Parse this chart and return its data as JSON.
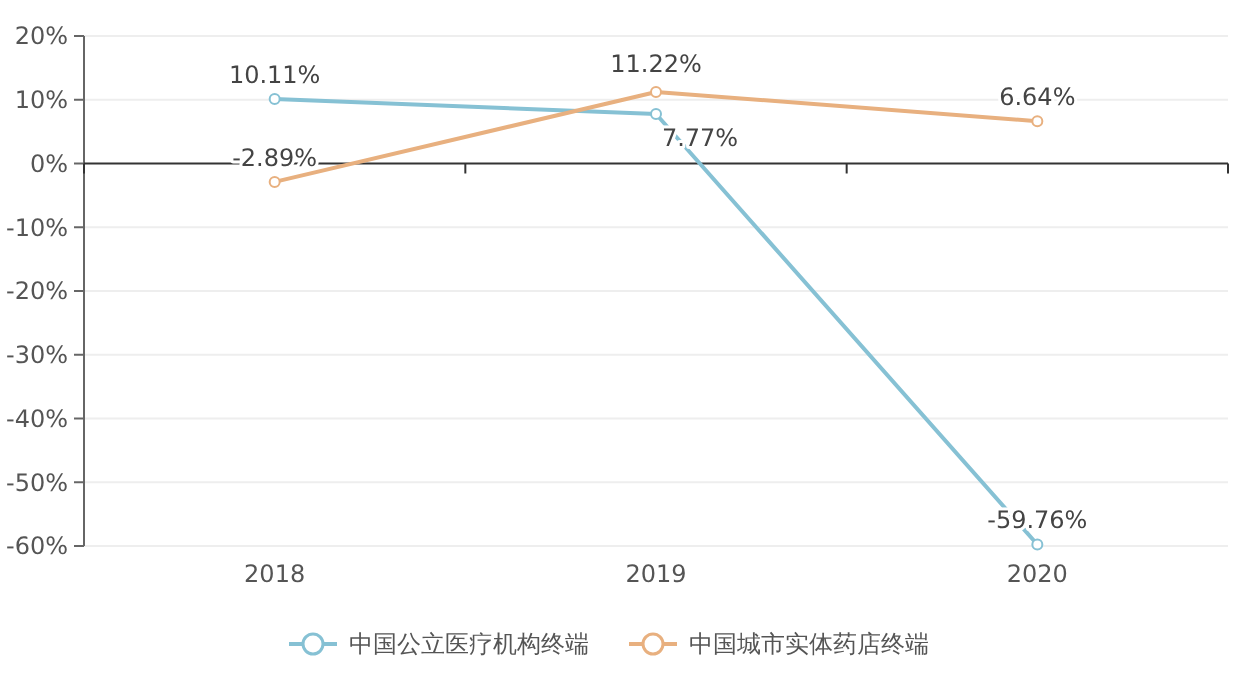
{
  "chart_data": {
    "type": "line",
    "categories": [
      "2018",
      "2019",
      "2020"
    ],
    "series": [
      {
        "name": "中国公立医疗机构终端",
        "color": "#86c1d4",
        "values": [
          10.11,
          7.77,
          -59.76
        ],
        "value_labels": [
          "10.11%",
          "7.77%",
          "-59.76%"
        ]
      },
      {
        "name": "中国城市实体药店终端",
        "color": "#e8b07f",
        "values": [
          -2.89,
          11.22,
          6.64
        ],
        "value_labels": [
          "-2.89%",
          "11.22%",
          "6.64%"
        ]
      }
    ],
    "ylim": [
      -60,
      20
    ],
    "yticks": [
      {
        "value": -60,
        "label": "-60%"
      },
      {
        "value": -50,
        "label": "-50%"
      },
      {
        "value": -40,
        "label": "-40%"
      },
      {
        "value": -30,
        "label": "-30%"
      },
      {
        "value": -20,
        "label": "-20%"
      },
      {
        "value": -10,
        "label": "-10%"
      },
      {
        "value": 0,
        "label": "0%"
      },
      {
        "value": 10,
        "label": "10%"
      },
      {
        "value": 20,
        "label": "20%"
      }
    ],
    "grid": "y",
    "legend": "bottom",
    "marker": "circle",
    "line_style": "solid"
  }
}
